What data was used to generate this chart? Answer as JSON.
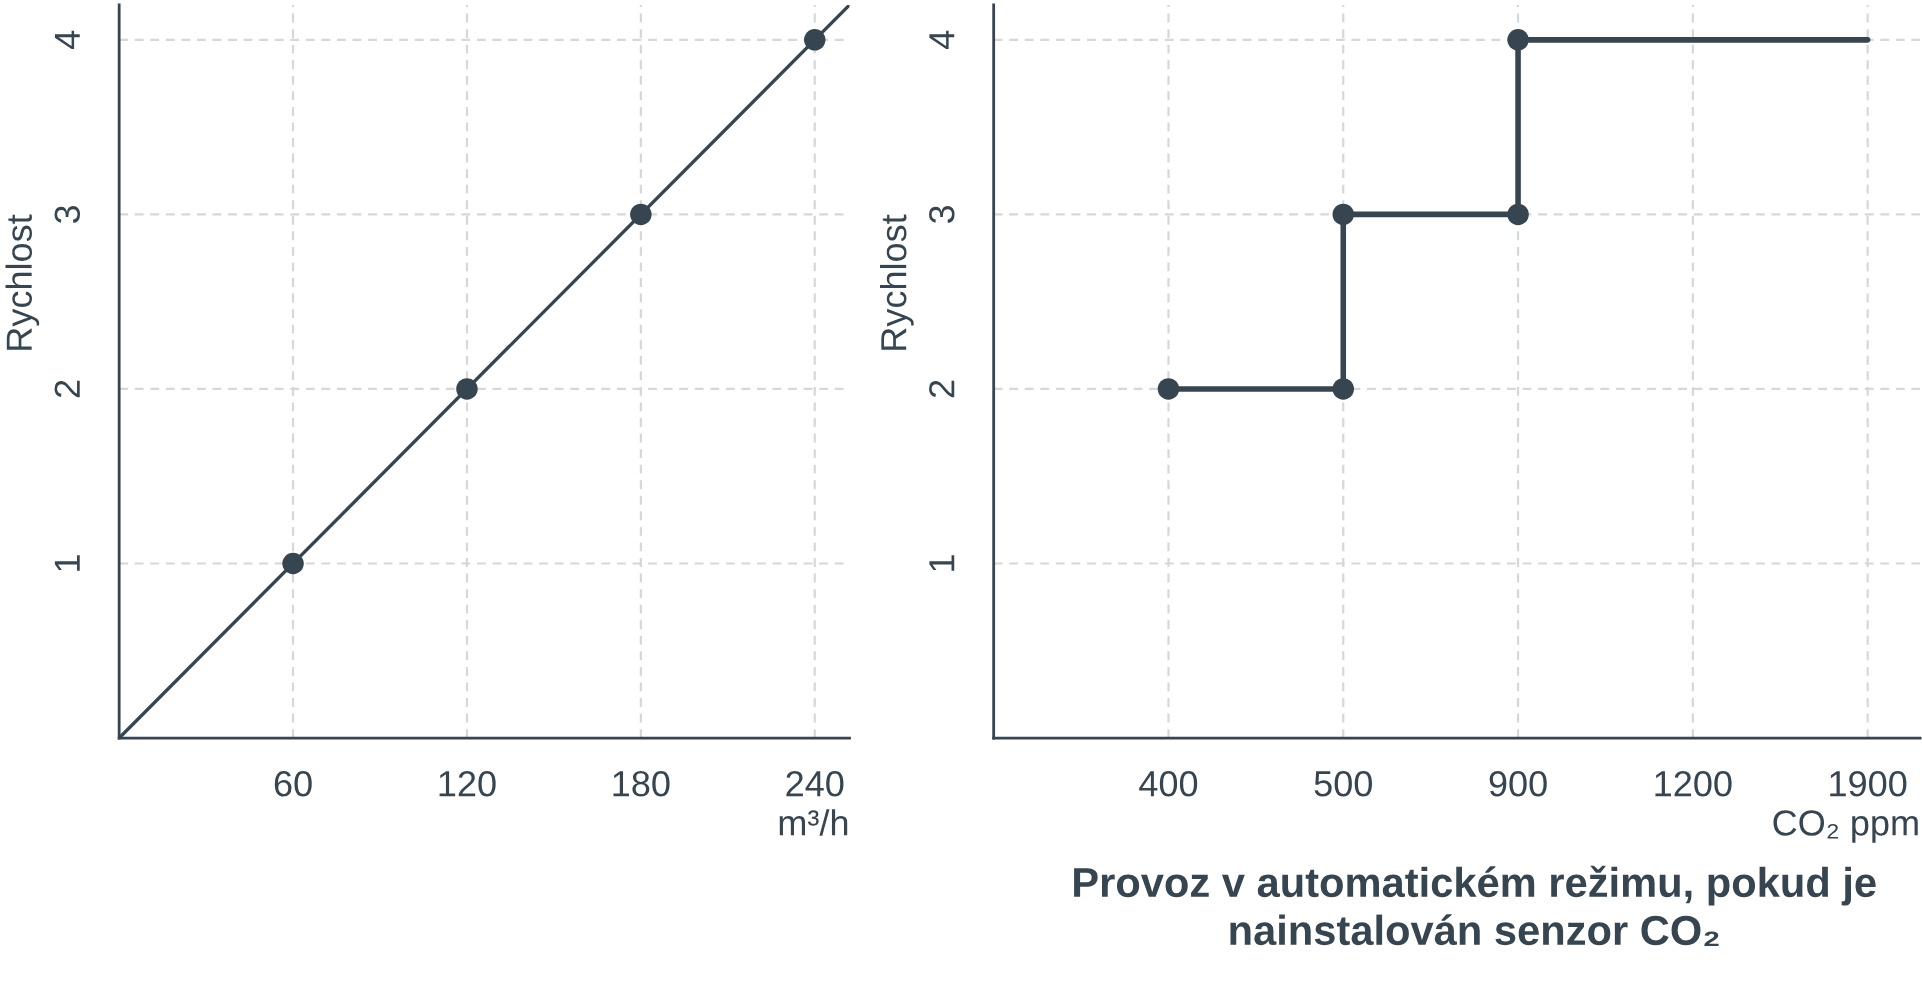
{
  "chart_data": [
    {
      "type": "line",
      "xlabel": "m³/h",
      "ylabel": "Rychlost",
      "xlim": [
        0,
        252
      ],
      "ylim": [
        0,
        4.2
      ],
      "xticks": [
        60,
        120,
        180,
        240
      ],
      "yticks": [
        1,
        2,
        3,
        4
      ],
      "grid": true,
      "legend": false,
      "series": [
        {
          "color": "#36454f",
          "x": [
            0,
            252
          ],
          "values": [
            0,
            4.2
          ],
          "marker": "none"
        },
        {
          "type": "scatter",
          "color": "#36454f",
          "x": [
            60,
            120,
            180,
            240
          ],
          "values": [
            1,
            2,
            3,
            4
          ],
          "marker": "circle"
        }
      ]
    },
    {
      "type": "step",
      "xlabel": "CO₂ ppm",
      "ylabel": "Rychlost",
      "categories": [
        null,
        "400",
        "500",
        "900",
        "1200",
        "1900"
      ],
      "ylim": [
        0,
        4.2
      ],
      "yticks": [
        1,
        2,
        3,
        4
      ],
      "grid": true,
      "legend": false,
      "annotations": [
        "Provoz v automatickém režimu, pokud je nainstalován senzor CO₂"
      ],
      "series": [
        {
          "color": "#36454f",
          "values": [
            null,
            2,
            3,
            4,
            4,
            4
          ],
          "marker": "none"
        },
        {
          "type": "scatter",
          "color": "#36454f",
          "x": [
            "400",
            "500",
            "500",
            "900",
            "900"
          ],
          "values": [
            2,
            2,
            3,
            3,
            4
          ],
          "marker": "circle"
        }
      ]
    }
  ]
}
